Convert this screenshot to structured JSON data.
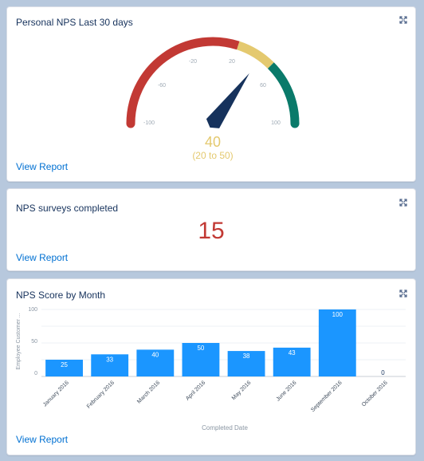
{
  "cards": {
    "gauge": {
      "title": "Personal NPS Last 30 days",
      "value": "40",
      "range_text": "(20 to 50)",
      "tick_labels": [
        "-100",
        "-60",
        "-20",
        "20",
        "60",
        "100"
      ],
      "view_report": "View Report",
      "needle_value": 40,
      "scale_min": -100,
      "scale_max": 100,
      "bands": [
        {
          "from": -100,
          "to": 20,
          "color": "#c23934"
        },
        {
          "from": 20,
          "to": 50,
          "color": "#e4c96f"
        },
        {
          "from": 50,
          "to": 100,
          "color": "#0a7a6a"
        }
      ],
      "expand_icon": "expand-icon"
    },
    "surveys": {
      "title": "NPS surveys completed",
      "value": "15",
      "view_report": "View Report",
      "expand_icon": "expand-icon"
    },
    "chart": {
      "title": "NPS Score by Month",
      "view_report": "View Report",
      "expand_icon": "expand-icon"
    }
  },
  "chart_data": {
    "type": "bar",
    "title": "NPS Score by Month",
    "categories": [
      "January 2016",
      "February 2016",
      "March 2016",
      "April 2016",
      "May 2016",
      "June 2016",
      "September 2016",
      "October 2016"
    ],
    "values": [
      25,
      33,
      40,
      50,
      38,
      43,
      100,
      0
    ],
    "data_labels": [
      "25",
      "33",
      "40",
      "50",
      "38",
      "43",
      "100",
      "0"
    ],
    "xlabel": "Completed Date",
    "ylabel": "Employee Customer ...",
    "ylim": [
      0,
      100
    ],
    "yticks": [
      "0",
      "50",
      "100"
    ],
    "grid": true,
    "bar_color": "#1b96ff"
  }
}
